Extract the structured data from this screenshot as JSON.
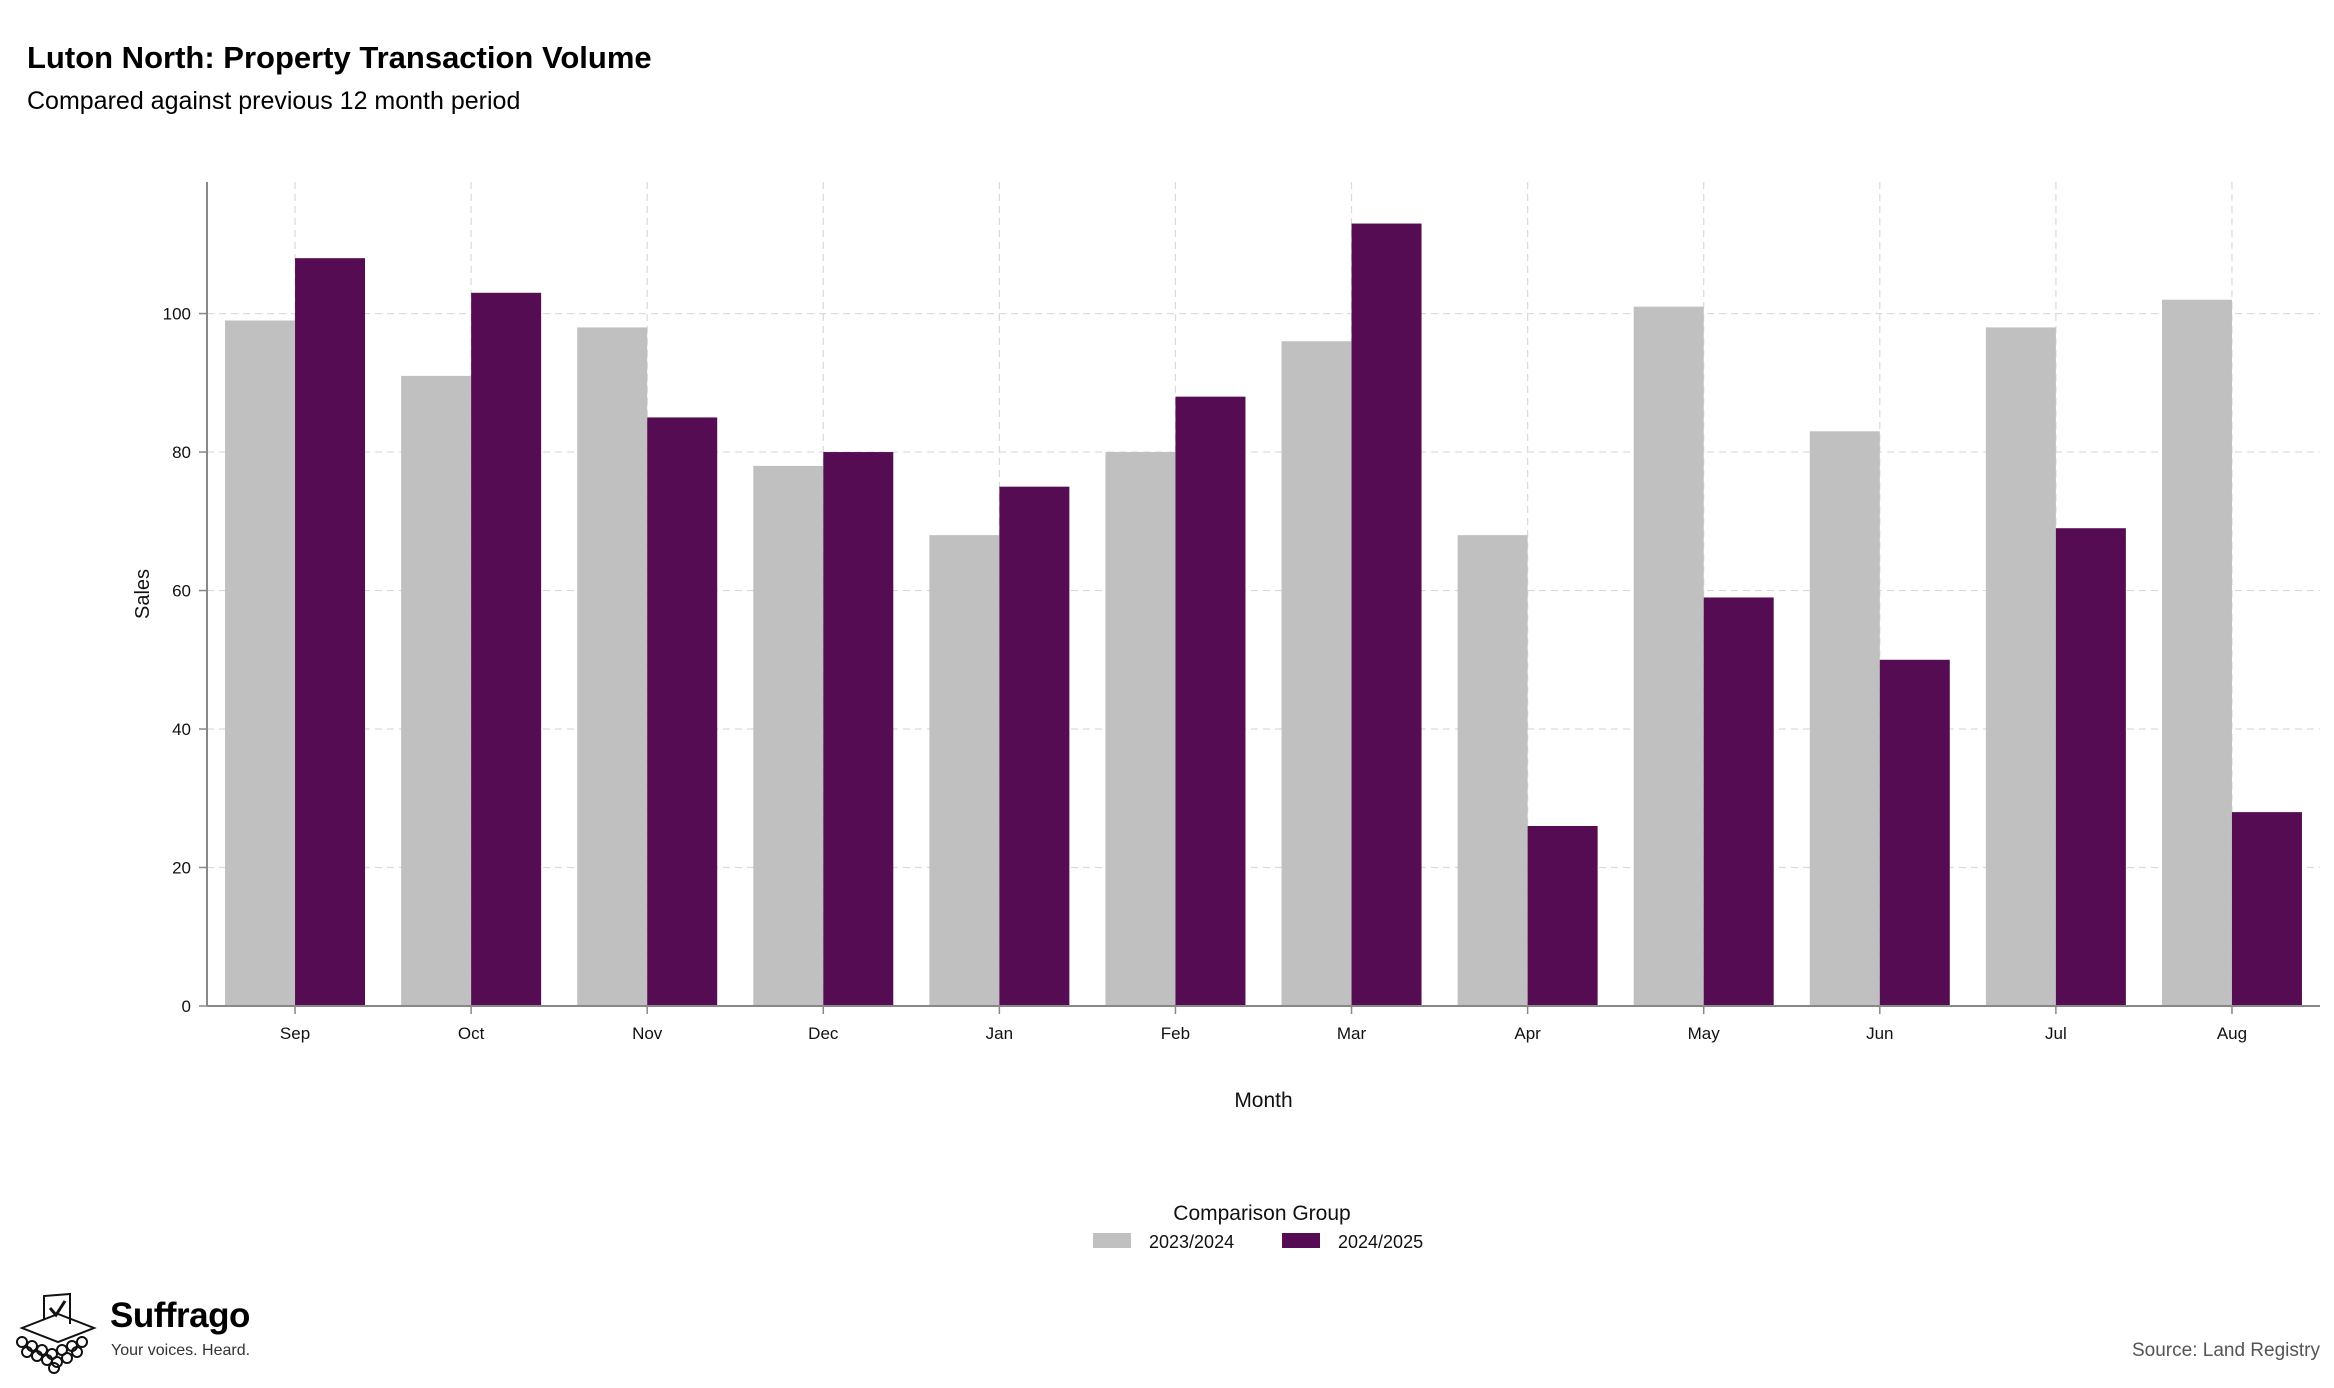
{
  "header": {
    "title": "Luton North: Property Transaction Volume",
    "subtitle": "Compared against previous 12 month period"
  },
  "footer": {
    "source": "Source: Land Registry",
    "brand_name": "Suffrago",
    "brand_tagline": "Your voices. Heard."
  },
  "chart_data": {
    "type": "bar",
    "xlabel": "Month",
    "ylabel": "Sales",
    "ylim": [
      0,
      119
    ],
    "yticks": [
      0,
      20,
      40,
      60,
      80,
      100
    ],
    "grid": true,
    "legend_title": "Comparison Group",
    "legend_placement": "bottom-center",
    "categories": [
      "Sep",
      "Oct",
      "Nov",
      "Dec",
      "Jan",
      "Feb",
      "Mar",
      "Apr",
      "May",
      "Jun",
      "Jul",
      "Aug"
    ],
    "series": [
      {
        "name": "2023/2024",
        "color": "#c0c0c0",
        "values": [
          99,
          91,
          98,
          78,
          68,
          80,
          96,
          68,
          101,
          83,
          98,
          102
        ]
      },
      {
        "name": "2024/2025",
        "color": "#560c52",
        "values": [
          108,
          103,
          85,
          80,
          75,
          88,
          113,
          26,
          59,
          50,
          69,
          28
        ]
      }
    ]
  }
}
